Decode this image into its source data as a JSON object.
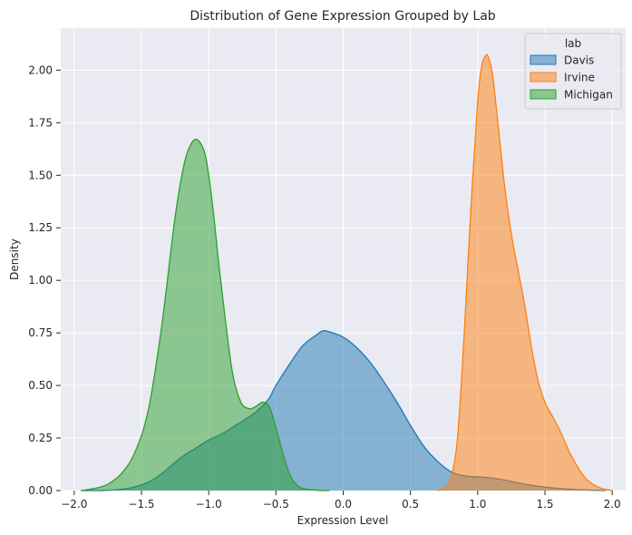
{
  "chart_data": {
    "type": "area",
    "subtype": "kde-density",
    "title": "Distribution of Gene Expression Grouped by Lab",
    "xlabel": "Expression Level",
    "ylabel": "Density",
    "xlim": [
      -2.1,
      2.1
    ],
    "ylim": [
      0,
      2.2
    ],
    "xticks": [
      -2.0,
      -1.5,
      -1.0,
      -0.5,
      0.0,
      0.5,
      1.0,
      1.5,
      2.0
    ],
    "xtick_labels": [
      "−2.0",
      "−1.5",
      "−1.0",
      "−0.5",
      "0.0",
      "0.5",
      "1.0",
      "1.5",
      "2.0"
    ],
    "yticks": [
      0,
      0.25,
      0.5,
      0.75,
      1.0,
      1.25,
      1.5,
      1.75,
      2.0
    ],
    "ytick_labels": [
      "0.00",
      "0.25",
      "0.50",
      "0.75",
      "1.00",
      "1.25",
      "1.50",
      "1.75",
      "2.00"
    ],
    "grid": true,
    "background": "#eaeaf2",
    "legend": {
      "title": "lab",
      "placement": "top-right"
    },
    "series": [
      {
        "name": "Davis",
        "fill": "#1f77b4",
        "line": "#1f77b4",
        "x": [
          -1.95,
          -1.8,
          -1.6,
          -1.45,
          -1.35,
          -1.2,
          -1.1,
          -1.0,
          -0.9,
          -0.8,
          -0.7,
          -0.62,
          -0.55,
          -0.5,
          -0.4,
          -0.3,
          -0.2,
          -0.15,
          -0.1,
          0.0,
          0.1,
          0.2,
          0.3,
          0.4,
          0.5,
          0.6,
          0.7,
          0.8,
          0.9,
          1.0,
          1.1,
          1.2,
          1.4,
          1.6,
          1.8,
          1.95
        ],
        "y": [
          0.0,
          0.0,
          0.01,
          0.04,
          0.08,
          0.16,
          0.2,
          0.24,
          0.27,
          0.31,
          0.35,
          0.39,
          0.44,
          0.5,
          0.6,
          0.69,
          0.74,
          0.76,
          0.755,
          0.73,
          0.68,
          0.61,
          0.52,
          0.42,
          0.31,
          0.21,
          0.14,
          0.09,
          0.07,
          0.065,
          0.06,
          0.05,
          0.025,
          0.01,
          0.003,
          0.0
        ]
      },
      {
        "name": "Irvine",
        "fill": "#ff7f0e",
        "line": "#ff7f0e",
        "x": [
          0.7,
          0.75,
          0.8,
          0.85,
          0.9,
          0.95,
          1.0,
          1.03,
          1.06,
          1.08,
          1.11,
          1.15,
          1.2,
          1.25,
          1.3,
          1.35,
          1.4,
          1.45,
          1.5,
          1.55,
          1.6,
          1.65,
          1.7,
          1.8,
          1.9,
          2.0
        ],
        "y": [
          0.0,
          0.01,
          0.06,
          0.25,
          0.75,
          1.35,
          1.85,
          2.02,
          2.07,
          2.06,
          1.98,
          1.75,
          1.45,
          1.22,
          1.05,
          0.88,
          0.68,
          0.52,
          0.42,
          0.36,
          0.3,
          0.23,
          0.16,
          0.06,
          0.015,
          0.0
        ]
      },
      {
        "name": "Michigan",
        "fill": "#2ca02c",
        "line": "#2ca02c",
        "x": [
          -1.95,
          -1.85,
          -1.75,
          -1.65,
          -1.55,
          -1.45,
          -1.35,
          -1.25,
          -1.18,
          -1.12,
          -1.07,
          -1.02,
          -0.97,
          -0.92,
          -0.87,
          -0.82,
          -0.76,
          -0.7,
          -0.65,
          -0.6,
          -0.55,
          -0.5,
          -0.45,
          -0.4,
          -0.35,
          -0.3,
          -0.2,
          -0.1
        ],
        "y": [
          0.0,
          0.01,
          0.03,
          0.08,
          0.18,
          0.38,
          0.78,
          1.3,
          1.56,
          1.66,
          1.66,
          1.58,
          1.35,
          1.05,
          0.78,
          0.55,
          0.42,
          0.39,
          0.4,
          0.42,
          0.4,
          0.3,
          0.18,
          0.08,
          0.03,
          0.01,
          0.002,
          0.0
        ]
      }
    ]
  }
}
